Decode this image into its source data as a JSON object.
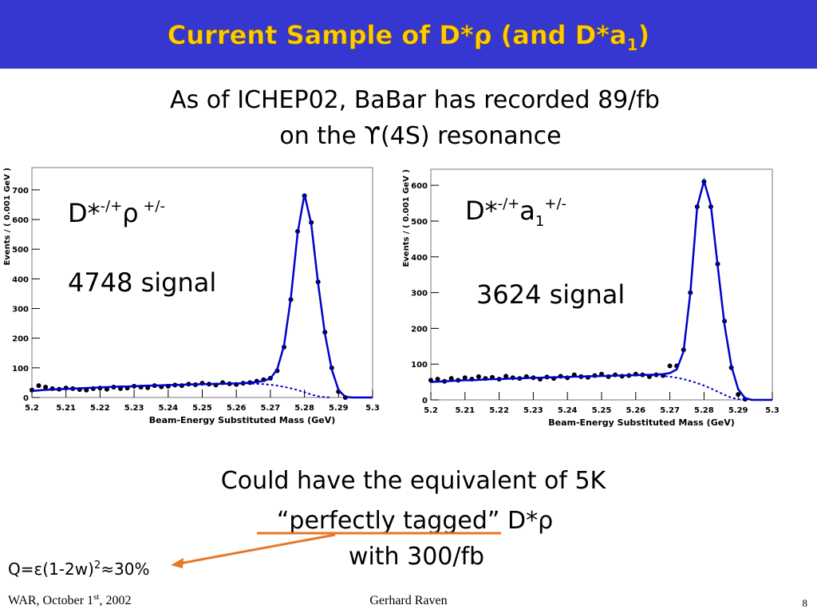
{
  "title": {
    "text": "Current Sample of D*ρ (and D*a",
    "sub": "1",
    "end": ")"
  },
  "intro": [
    "As of ICHEP02, BaBar has recorded 89/fb",
    "on the ϒ(4S) resonance"
  ],
  "chart_data": [
    {
      "type": "line",
      "xlabel": "Beam-Energy Substituted Mass (GeV)",
      "ylabel": "Events / ( 0.001 GeV )",
      "annotation": {
        "main": "D*",
        "sup1": "-/+",
        "base": "ρ",
        "sup2": " +/-",
        "signal": "4748 signal"
      },
      "x": [
        5.2,
        5.202,
        5.204,
        5.206,
        5.208,
        5.21,
        5.212,
        5.214,
        5.216,
        5.218,
        5.22,
        5.222,
        5.224,
        5.226,
        5.228,
        5.23,
        5.232,
        5.234,
        5.236,
        5.238,
        5.24,
        5.242,
        5.244,
        5.246,
        5.248,
        5.25,
        5.252,
        5.254,
        5.256,
        5.258,
        5.26,
        5.262,
        5.264,
        5.266,
        5.268,
        5.27,
        5.272,
        5.274,
        5.276,
        5.278,
        5.28,
        5.282,
        5.284,
        5.286,
        5.288,
        5.29,
        5.292,
        5.294,
        5.296,
        5.298,
        5.3
      ],
      "xlim": [
        5.2,
        5.3
      ],
      "xticks": [
        5.2,
        5.21,
        5.22,
        5.23,
        5.24,
        5.25,
        5.26,
        5.27,
        5.28,
        5.29,
        5.3
      ],
      "ylim": [
        0,
        775
      ],
      "yticks": [
        0,
        100,
        200,
        300,
        400,
        500,
        600,
        700
      ],
      "series": [
        {
          "name": "data",
          "style": "points",
          "color": "#000000",
          "values": [
            25,
            40,
            35,
            30,
            28,
            32,
            30,
            27,
            25,
            30,
            32,
            28,
            35,
            30,
            32,
            38,
            35,
            33,
            40,
            36,
            38,
            42,
            40,
            45,
            43,
            48,
            45,
            42,
            50,
            46,
            44,
            48,
            50,
            55,
            60,
            65,
            90,
            170,
            330,
            560,
            680,
            590,
            390,
            220,
            100,
            20,
            0,
            null,
            null,
            null,
            null
          ]
        },
        {
          "name": "fit",
          "style": "line",
          "color": "#0000cc",
          "values": [
            22,
            24,
            26,
            27,
            28,
            29,
            30,
            31,
            32,
            33,
            34,
            35,
            36,
            37,
            37,
            38,
            39,
            40,
            40,
            41,
            42,
            42,
            43,
            44,
            44,
            45,
            45,
            46,
            46,
            47,
            47,
            48,
            50,
            52,
            56,
            64,
            95,
            175,
            335,
            555,
            685,
            585,
            385,
            215,
            95,
            25,
            2,
            0,
            0,
            0,
            0
          ]
        },
        {
          "name": "background",
          "style": "dashed",
          "color": "#0000cc",
          "values": [
            22,
            24,
            26,
            27,
            28,
            29,
            30,
            31,
            32,
            33,
            34,
            35,
            36,
            37,
            37,
            38,
            39,
            40,
            40,
            41,
            42,
            42,
            43,
            44,
            44,
            45,
            45,
            46,
            46,
            47,
            47,
            47,
            47,
            46,
            45,
            43,
            40,
            36,
            31,
            25,
            18,
            10,
            4,
            1,
            0,
            null,
            null,
            null,
            null,
            null,
            null
          ]
        }
      ]
    },
    {
      "type": "line",
      "xlabel": "Beam-Energy Substituted Mass (GeV)",
      "ylabel": "Events / ( 0.001 GeV )",
      "annotation": {
        "main": "D*",
        "sup1": "-/+",
        "base": "a",
        "sub": "1",
        "sup2": "+/-",
        "signal": "3624 signal"
      },
      "x": [
        5.2,
        5.202,
        5.204,
        5.206,
        5.208,
        5.21,
        5.212,
        5.214,
        5.216,
        5.218,
        5.22,
        5.222,
        5.224,
        5.226,
        5.228,
        5.23,
        5.232,
        5.234,
        5.236,
        5.238,
        5.24,
        5.242,
        5.244,
        5.246,
        5.248,
        5.25,
        5.252,
        5.254,
        5.256,
        5.258,
        5.26,
        5.262,
        5.264,
        5.266,
        5.268,
        5.27,
        5.272,
        5.274,
        5.276,
        5.278,
        5.28,
        5.282,
        5.284,
        5.286,
        5.288,
        5.29,
        5.292,
        5.294,
        5.296,
        5.298,
        5.3
      ],
      "xlim": [
        5.2,
        5.3
      ],
      "xticks": [
        5.2,
        5.21,
        5.22,
        5.23,
        5.24,
        5.25,
        5.26,
        5.27,
        5.28,
        5.29,
        5.3
      ],
      "ylim": [
        0,
        645
      ],
      "yticks": [
        0,
        100,
        200,
        300,
        400,
        500,
        600
      ],
      "series": [
        {
          "name": "data",
          "style": "points",
          "color": "#000000",
          "values": [
            55,
            58,
            52,
            60,
            55,
            62,
            58,
            65,
            60,
            63,
            58,
            66,
            62,
            60,
            65,
            62,
            58,
            64,
            60,
            66,
            62,
            70,
            65,
            63,
            68,
            72,
            65,
            70,
            66,
            68,
            72,
            70,
            65,
            70,
            68,
            95,
            95,
            140,
            300,
            540,
            610,
            540,
            380,
            220,
            90,
            15,
            2,
            null,
            null,
            null,
            null
          ]
        },
        {
          "name": "fit",
          "style": "line",
          "color": "#0000cc",
          "values": [
            50,
            51,
            52,
            53,
            54,
            55,
            55,
            56,
            57,
            58,
            58,
            59,
            60,
            60,
            61,
            62,
            62,
            63,
            63,
            64,
            64,
            65,
            65,
            66,
            66,
            67,
            67,
            68,
            68,
            69,
            69,
            70,
            70,
            71,
            72,
            75,
            85,
            135,
            300,
            540,
            612,
            545,
            375,
            210,
            95,
            30,
            5,
            0,
            0,
            0,
            0
          ]
        },
        {
          "name": "background",
          "style": "dashed",
          "color": "#0000cc",
          "values": [
            50,
            51,
            52,
            53,
            54,
            55,
            55,
            56,
            57,
            58,
            58,
            59,
            60,
            60,
            61,
            62,
            62,
            63,
            63,
            64,
            64,
            65,
            65,
            66,
            66,
            67,
            67,
            68,
            68,
            69,
            69,
            69,
            69,
            68,
            67,
            65,
            62,
            58,
            53,
            47,
            40,
            32,
            23,
            14,
            6,
            2,
            0,
            null,
            null,
            null,
            null
          ]
        }
      ]
    }
  ],
  "conclusion": [
    "Could have the equivalent of 5K",
    "“perfectly tagged” D*ρ",
    "with 300/fb"
  ],
  "formula": {
    "text": "Q=ε(1-2w)",
    "sup": "2",
    "end": "≈30%"
  },
  "footer": {
    "left": "WAR, October 1",
    "left_sup": "st",
    "left_end": ", 2002",
    "center": "Gerhard Raven",
    "page": "8"
  }
}
